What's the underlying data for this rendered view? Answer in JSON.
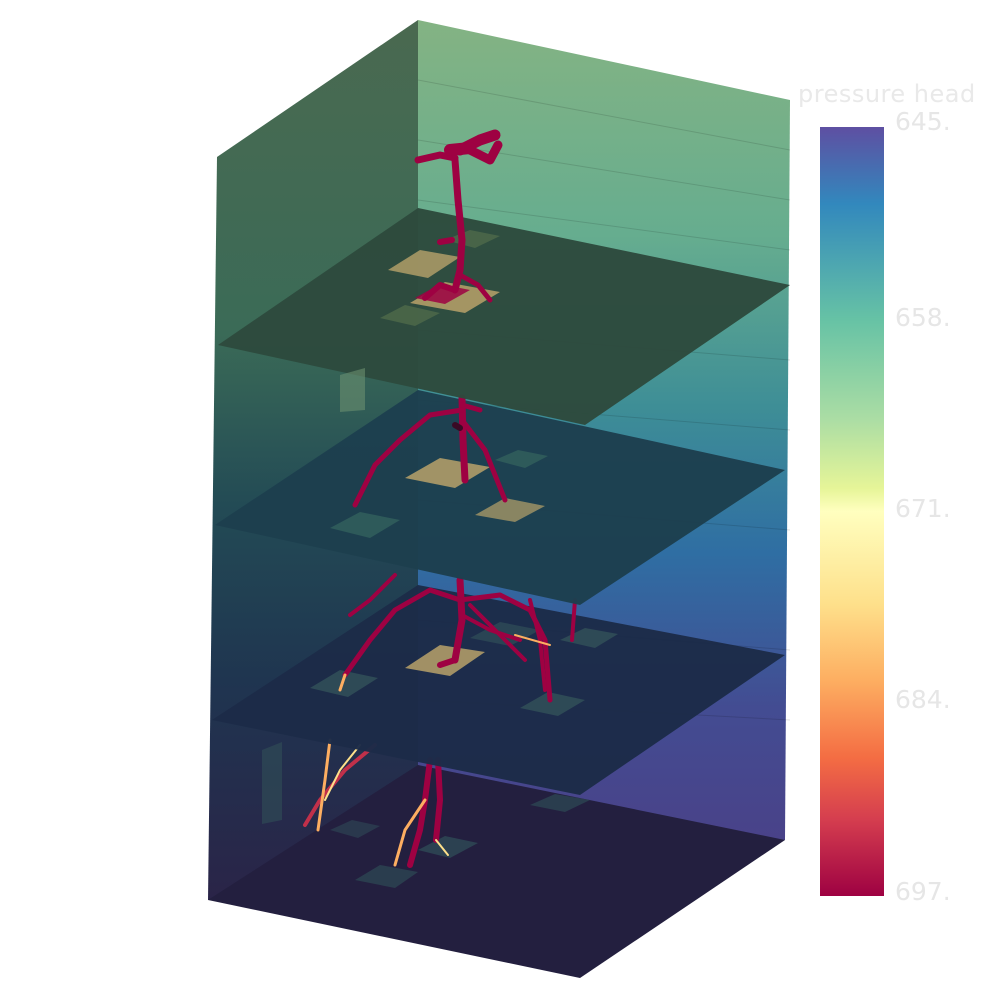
{
  "colorbar": {
    "title": "pressure head",
    "ticks": [
      "645.",
      "658.",
      "671.",
      "684.",
      "697."
    ],
    "colors": [
      "#5e4fa2",
      "#3288bd",
      "#66c2a5",
      "#abdda4",
      "#e6f598",
      "#ffffbf",
      "#fee08b",
      "#fdae61",
      "#f46d43",
      "#d53e4f",
      "#9e0142"
    ]
  },
  "scene": {
    "root_color": "#9e0142",
    "root_tip_color": "#fdae61",
    "cell_highlight_color": "#b8a26a",
    "slice_count": 4
  }
}
